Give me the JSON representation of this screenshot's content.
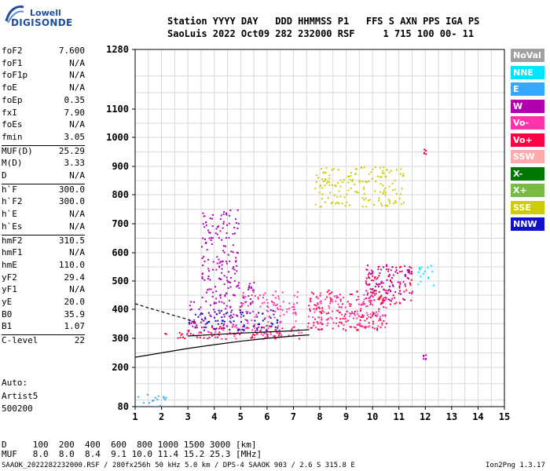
{
  "logo": {
    "top": "Lowell",
    "main": "DIGISONDE"
  },
  "header": {
    "line1": "Station YYYY DAY   DDD HHMMSS P1   FFS S AXN PPS IGA PS",
    "line2": "SaoLuis 2022 Oct09 282 232000 RSF     1 715 100 00- 11"
  },
  "params": [
    {
      "name": "foF2",
      "value": "7.600"
    },
    {
      "name": "foF1",
      "value": "N/A"
    },
    {
      "name": "foF1p",
      "value": "N/A"
    },
    {
      "name": "foE",
      "value": "N/A"
    },
    {
      "name": "foEp",
      "value": "0.35"
    },
    {
      "name": "fxI",
      "value": "7.90"
    },
    {
      "name": "foEs",
      "value": "N/A"
    },
    {
      "name": "fmin",
      "value": "3.05"
    },
    {
      "name": "MUF(D)",
      "value": "25.29"
    },
    {
      "name": "M(D)",
      "value": "3.33"
    },
    {
      "name": "D",
      "value": "N/A"
    },
    {
      "name": "h`F",
      "value": "300.0"
    },
    {
      "name": "h`F2",
      "value": "300.0"
    },
    {
      "name": "h`E",
      "value": "N/A"
    },
    {
      "name": "h`Es",
      "value": "N/A"
    },
    {
      "name": "hmF2",
      "value": "310.5"
    },
    {
      "name": "hmF1",
      "value": "N/A"
    },
    {
      "name": "hmE",
      "value": "110.0"
    },
    {
      "name": "yF2",
      "value": "29.4"
    },
    {
      "name": "yF1",
      "value": "N/A"
    },
    {
      "name": "yE",
      "value": "20.0"
    },
    {
      "name": "B0",
      "value": "35.9"
    },
    {
      "name": "B1",
      "value": "1.07"
    },
    {
      "name": "C-level",
      "value": "22"
    }
  ],
  "auto": {
    "label": "Auto:",
    "artist": "Artist5",
    "version": "500200"
  },
  "legend": [
    {
      "label": "NoVal",
      "color": "#a0a0a0"
    },
    {
      "label": "NNE",
      "color": "#00e5ff"
    },
    {
      "label": "E",
      "color": "#33aaff"
    },
    {
      "label": "W",
      "color": "#b000b0"
    },
    {
      "label": "Vo-",
      "color": "#ff33aa"
    },
    {
      "label": "Vo+",
      "color": "#ff0044"
    },
    {
      "label": "SSW",
      "color": "#ffaaaa"
    },
    {
      "label": "X-",
      "color": "#007700"
    },
    {
      "label": "X+",
      "color": "#77bb44"
    },
    {
      "label": "SSE",
      "color": "#cccc00"
    },
    {
      "label": "NNW",
      "color": "#1111cc"
    }
  ],
  "footer": {
    "d_line": "D     100  200  400  600  800 1000 1500 3000 [km]",
    "muf_line": "MUF   8.0  8.0  8.4  9.1 10.0 11.4 15.2 25.3 [MHz]"
  },
  "status_line": "SAAOK_2022282232000.RSF / 280fx256h 50 kHz 5.0 km / DPS-4 SAAOK 903 / 2.6 S 315.8 E",
  "program_version": "Ion2Png 1.3.17",
  "chart_data": {
    "type": "scatter",
    "xlim": [
      1,
      15
    ],
    "ylim": [
      80,
      1280
    ],
    "x_ticks": [
      1,
      2,
      3,
      4,
      5,
      6,
      7,
      8,
      9,
      10,
      11,
      12,
      13,
      14,
      15
    ],
    "y_ticks": [
      80,
      200,
      300,
      400,
      500,
      600,
      700,
      800,
      900,
      1000,
      1100,
      1280
    ],
    "grid": true,
    "legend_placement": "right",
    "traces": [
      {
        "style": "solid",
        "x": [
          1.0,
          2.0,
          3.0,
          4.0,
          5.0,
          6.0,
          7.0,
          7.6
        ],
        "y": [
          235,
          250,
          265,
          278,
          290,
          300,
          308,
          312
        ]
      },
      {
        "style": "solid",
        "x": [
          3.0,
          4.0,
          5.0,
          6.0,
          7.0,
          7.6
        ],
        "y": [
          308,
          313,
          318,
          322,
          326,
          330
        ]
      },
      {
        "style": "dashed",
        "x": [
          1.0,
          1.5,
          2.0,
          2.5,
          3.0,
          3.3
        ],
        "y": [
          420,
          405,
          392,
          378,
          365,
          355
        ]
      }
    ],
    "echo_clusters": [
      {
        "x": [
          1.9,
          3.1
        ],
        "y": [
          298,
          322
        ],
        "color": "#ff0044"
      },
      {
        "x": [
          2.9,
          7.3
        ],
        "y": [
          300,
          345
        ],
        "color": "#ff33aa"
      },
      {
        "x": [
          2.9,
          7.3
        ],
        "y": [
          300,
          345
        ],
        "color": "#ff0044"
      },
      {
        "x": [
          3.0,
          5.0
        ],
        "y": [
          340,
          430
        ],
        "color": "#b000b0"
      },
      {
        "x": [
          3.0,
          6.5
        ],
        "y": [
          330,
          400
        ],
        "color": "#1111cc"
      },
      {
        "x": [
          3.5,
          5.5
        ],
        "y": [
          420,
          500
        ],
        "color": "#b000b0"
      },
      {
        "x": [
          3.5,
          4.9
        ],
        "y": [
          500,
          760
        ],
        "color": "#b000b0"
      },
      {
        "x": [
          5.0,
          7.2
        ],
        "y": [
          350,
          470
        ],
        "color": "#ff33aa"
      },
      {
        "x": [
          7.5,
          10.5
        ],
        "y": [
          330,
          470
        ],
        "color": "#ff0044"
      },
      {
        "x": [
          7.5,
          10.5
        ],
        "y": [
          340,
          460
        ],
        "color": "#ff33aa"
      },
      {
        "x": [
          9.7,
          11.5
        ],
        "y": [
          420,
          560
        ],
        "color": "#ff0044"
      },
      {
        "x": [
          9.7,
          11.5
        ],
        "y": [
          430,
          560
        ],
        "color": "#b000b0"
      },
      {
        "x": [
          11.7,
          12.3
        ],
        "y": [
          480,
          560
        ],
        "color": "#00e5ff"
      },
      {
        "x": [
          7.8,
          11.2
        ],
        "y": [
          760,
          900
        ],
        "color": "#cccc00"
      },
      {
        "x": [
          1.0,
          2.2
        ],
        "y": [
          80,
          120
        ],
        "color": "#33aaff"
      },
      {
        "x": [
          11.9,
          12.0
        ],
        "y": [
          945,
          965
        ],
        "color": "#ff0044"
      },
      {
        "x": [
          11.9,
          12.0
        ],
        "y": [
          230,
          245
        ],
        "color": "#b000b0"
      }
    ]
  }
}
